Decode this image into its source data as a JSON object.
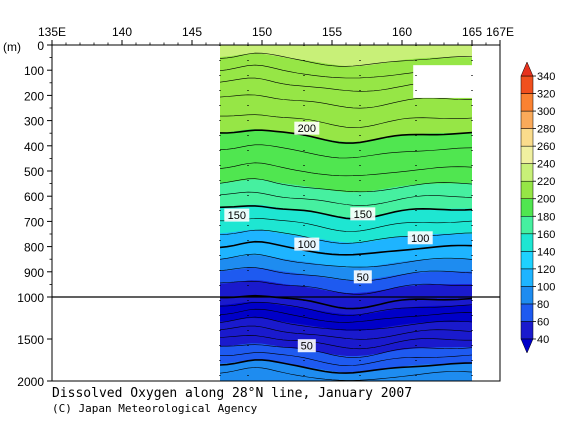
{
  "chart_data": {
    "type": "contour",
    "title": "Dissolved Oxygen along 28°N line, January 2007",
    "credit": "(C) Japan Meteorological Agency",
    "y_unit_label": "(m)",
    "x_ticks": [
      {
        "value": 135,
        "label": "135E"
      },
      {
        "value": 140,
        "label": "140"
      },
      {
        "value": 145,
        "label": "145"
      },
      {
        "value": 150,
        "label": "150"
      },
      {
        "value": 155,
        "label": "155"
      },
      {
        "value": 160,
        "label": "160"
      },
      {
        "value": 165,
        "label": "165"
      },
      {
        "value": 167,
        "label": "167E"
      }
    ],
    "xlim": [
      135,
      167
    ],
    "y_upper": {
      "range": [
        0,
        1000
      ],
      "ticks": [
        0,
        100,
        200,
        300,
        400,
        500,
        600,
        700,
        800,
        900,
        1000
      ]
    },
    "y_lower": {
      "range": [
        1000,
        2000
      ],
      "ticks": [
        1500,
        2000
      ]
    },
    "data_extent": {
      "lon_min": 147,
      "lon_max": 165
    },
    "stations_lon": [
      147,
      149,
      153,
      157,
      161,
      165
    ],
    "colorbar": {
      "levels": [
        40,
        60,
        80,
        100,
        120,
        140,
        160,
        180,
        200,
        220,
        240,
        260,
        280,
        300,
        320,
        340
      ],
      "colors": [
        "#1a1acd",
        "#1e5af0",
        "#1e8cf0",
        "#1eb4ff",
        "#1ed2ff",
        "#1ee6d2",
        "#46f0a0",
        "#50e650",
        "#96e646",
        "#c8f078",
        "#f0f0a0",
        "#fadc8c",
        "#faaa5a",
        "#fa8232",
        "#f0501e",
        "#dc2814"
      ],
      "under_color": "#0000c8",
      "over_color": "#e6321e"
    },
    "depth_profile": [
      {
        "depth": 25,
        "value": 222
      },
      {
        "depth": 75,
        "value": 216
      },
      {
        "depth": 125,
        "value": 210
      },
      {
        "depth": 175,
        "value": 206
      },
      {
        "depth": 250,
        "value": 203
      },
      {
        "depth": 325,
        "value": 201
      },
      {
        "depth": 375,
        "value": 199
      },
      {
        "depth": 450,
        "value": 194
      },
      {
        "depth": 525,
        "value": 185
      },
      {
        "depth": 575,
        "value": 176
      },
      {
        "depth": 625,
        "value": 166
      },
      {
        "depth": 675,
        "value": 154
      },
      {
        "depth": 725,
        "value": 140
      },
      {
        "depth": 775,
        "value": 118
      },
      {
        "depth": 825,
        "value": 100
      },
      {
        "depth": 875,
        "value": 86
      },
      {
        "depth": 925,
        "value": 70
      },
      {
        "depth": 975,
        "value": 54
      },
      {
        "depth": 1060,
        "value": 44
      },
      {
        "depth": 1150,
        "value": 36
      },
      {
        "depth": 1250,
        "value": 34
      },
      {
        "depth": 1350,
        "value": 40
      },
      {
        "depth": 1450,
        "value": 48
      },
      {
        "depth": 1550,
        "value": 56
      },
      {
        "depth": 1650,
        "value": 64
      },
      {
        "depth": 1750,
        "value": 72
      },
      {
        "depth": 1850,
        "value": 82
      },
      {
        "depth": 1950,
        "value": 96
      }
    ],
    "contour_labels": [
      {
        "text": "200",
        "lon": 153.2,
        "depth": 330
      },
      {
        "text": "150",
        "lon": 148.2,
        "depth": 675
      },
      {
        "text": "150",
        "lon": 157.2,
        "depth": 670
      },
      {
        "text": "100",
        "lon": 153.2,
        "depth": 790
      },
      {
        "text": "100",
        "lon": 161.3,
        "depth": 765
      },
      {
        "text": "50",
        "lon": 157.2,
        "depth": 920
      },
      {
        "text": "50",
        "lon": 153.2,
        "depth": 1580
      }
    ]
  }
}
